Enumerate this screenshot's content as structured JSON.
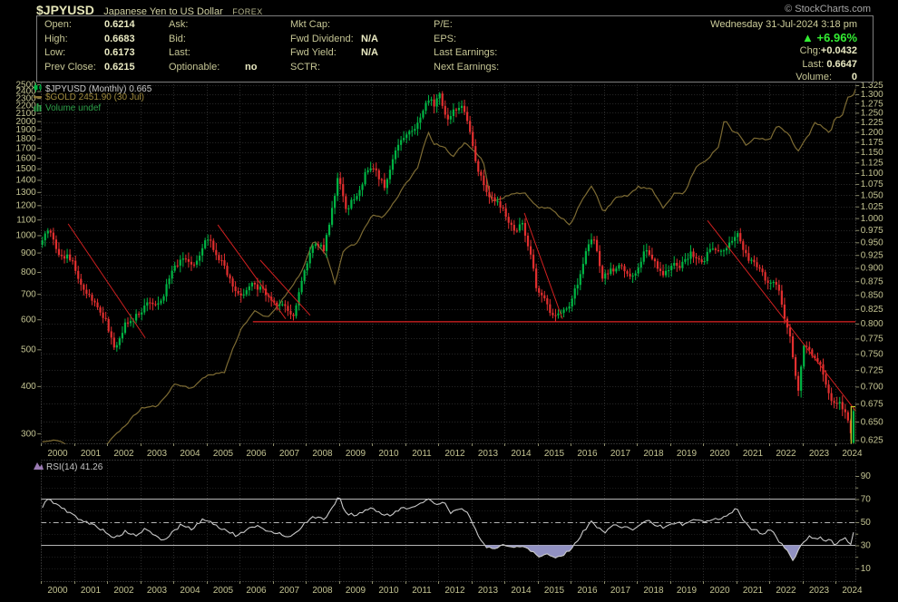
{
  "header": {
    "symbol": "$JPYUSD",
    "name": "Japanese Yen to US Dollar",
    "exchange": "FOREX",
    "copyright": "© StockCharts.com"
  },
  "quote_panel": {
    "date": "Wednesday 31-Jul-2024 3:18 pm",
    "up_arrow": "▲",
    "change_pct": "+6.96%",
    "chg_label": "Chg:",
    "chg_value": "+0.0432",
    "last_label": "Last:",
    "last_value": "0.6647",
    "volume_label": "Volume:",
    "volume_value": "0",
    "columns": [
      {
        "rows": [
          {
            "label": "Open:",
            "value": "0.6214"
          },
          {
            "label": "High:",
            "value": "0.6683"
          },
          {
            "label": "Low:",
            "value": "0.6173"
          },
          {
            "label": "Prev Close:",
            "value": "0.6215"
          }
        ]
      },
      {
        "rows": [
          {
            "label": "Ask:",
            "value": ""
          },
          {
            "label": "Bid:",
            "value": ""
          },
          {
            "label": "Last:",
            "value": ""
          },
          {
            "label": "Optionable:",
            "value": "no"
          }
        ]
      },
      {
        "rows": [
          {
            "label": "Mkt Cap:",
            "value": ""
          },
          {
            "label": "Fwd Dividend:",
            "value": "N/A"
          },
          {
            "label": "Fwd Yield:",
            "value": "N/A"
          },
          {
            "label": "SCTR:",
            "value": ""
          }
        ]
      },
      {
        "rows": [
          {
            "label": "P/E:",
            "value": ""
          },
          {
            "label": "EPS:",
            "value": ""
          },
          {
            "label": "Last Earnings:",
            "value": ""
          },
          {
            "label": "Next Earnings:",
            "value": ""
          }
        ]
      }
    ]
  },
  "legend": {
    "price": "$JPYUSD (Monthly) 0.665",
    "overlay": "$GOLD 2451.90 (30 Jul)",
    "volume": "Volume undef"
  },
  "rsi_legend": "RSI(14) 41.26",
  "chart_data": [
    {
      "type": "candlestick",
      "title": "$JPYUSD (Monthly)",
      "overlay_line": "$GOLD",
      "x_axis": {
        "start": 2000.0,
        "end": 2024.62,
        "tick_labels": [
          "2000",
          "2001",
          "2002",
          "2003",
          "2004",
          "2005",
          "2006",
          "2007",
          "2008",
          "2009",
          "2010",
          "2011",
          "2012",
          "2013",
          "2014",
          "2015",
          "2016",
          "2017",
          "2018",
          "2019",
          "2020",
          "2021",
          "2022",
          "2023",
          "2024"
        ]
      },
      "right_axis": {
        "scale": "log",
        "tick_min": 0.625,
        "tick_max": 1.325,
        "tick_step": 0.025,
        "decimals": 3
      },
      "left_axis": {
        "scale": "log",
        "tick_min": 300,
        "tick_max": 2500,
        "tick_step": 100
      },
      "jpyusd_close_anchors": [
        [
          2000.0,
          0.955
        ],
        [
          2000.17,
          0.975
        ],
        [
          2000.5,
          0.93
        ],
        [
          2000.9,
          0.915
        ],
        [
          2001.2,
          0.86
        ],
        [
          2001.7,
          0.825
        ],
        [
          2001.95,
          0.8
        ],
        [
          2002.2,
          0.755
        ],
        [
          2002.5,
          0.8
        ],
        [
          2002.9,
          0.815
        ],
        [
          2003.2,
          0.84
        ],
        [
          2003.6,
          0.835
        ],
        [
          2003.9,
          0.895
        ],
        [
          2004.2,
          0.92
        ],
        [
          2004.6,
          0.9
        ],
        [
          2004.95,
          0.965
        ],
        [
          2005.2,
          0.935
        ],
        [
          2005.6,
          0.89
        ],
        [
          2005.95,
          0.845
        ],
        [
          2006.3,
          0.875
        ],
        [
          2006.7,
          0.855
        ],
        [
          2007.0,
          0.84
        ],
        [
          2007.4,
          0.825
        ],
        [
          2007.55,
          0.805
        ],
        [
          2007.9,
          0.89
        ],
        [
          2008.2,
          0.95
        ],
        [
          2008.5,
          0.935
        ],
        [
          2008.75,
          1.02
        ],
        [
          2008.95,
          1.1
        ],
        [
          2009.15,
          1.015
        ],
        [
          2009.5,
          1.05
        ],
        [
          2009.85,
          1.115
        ],
        [
          2010.1,
          1.1
        ],
        [
          2010.35,
          1.065
        ],
        [
          2010.7,
          1.17
        ],
        [
          2010.95,
          1.195
        ],
        [
          2011.2,
          1.205
        ],
        [
          2011.45,
          1.24
        ],
        [
          2011.7,
          1.295
        ],
        [
          2011.85,
          1.27
        ],
        [
          2012.0,
          1.305
        ],
        [
          2012.2,
          1.23
        ],
        [
          2012.4,
          1.255
        ],
        [
          2012.7,
          1.275
        ],
        [
          2012.9,
          1.215
        ],
        [
          2013.1,
          1.12
        ],
        [
          2013.4,
          1.055
        ],
        [
          2013.7,
          1.035
        ],
        [
          2013.95,
          1.015
        ],
        [
          2014.2,
          0.975
        ],
        [
          2014.5,
          0.985
        ],
        [
          2014.75,
          0.93
        ],
        [
          2014.95,
          0.855
        ],
        [
          2015.2,
          0.84
        ],
        [
          2015.45,
          0.805
        ],
        [
          2015.7,
          0.825
        ],
        [
          2015.95,
          0.83
        ],
        [
          2016.2,
          0.88
        ],
        [
          2016.5,
          0.945
        ],
        [
          2016.65,
          0.965
        ],
        [
          2016.9,
          0.88
        ],
        [
          2017.1,
          0.89
        ],
        [
          2017.4,
          0.905
        ],
        [
          2017.7,
          0.89
        ],
        [
          2017.95,
          0.885
        ],
        [
          2018.2,
          0.94
        ],
        [
          2018.5,
          0.91
        ],
        [
          2018.8,
          0.885
        ],
        [
          2019.0,
          0.91
        ],
        [
          2019.3,
          0.905
        ],
        [
          2019.6,
          0.93
        ],
        [
          2019.95,
          0.915
        ],
        [
          2020.2,
          0.935
        ],
        [
          2020.5,
          0.93
        ],
        [
          2020.8,
          0.955
        ],
        [
          2021.0,
          0.97
        ],
        [
          2021.3,
          0.915
        ],
        [
          2021.6,
          0.905
        ],
        [
          2021.95,
          0.87
        ],
        [
          2022.2,
          0.87
        ],
        [
          2022.4,
          0.815
        ],
        [
          2022.6,
          0.77
        ],
        [
          2022.75,
          0.72
        ],
        [
          2022.82,
          0.69
        ],
        [
          2023.0,
          0.765
        ],
        [
          2023.2,
          0.75
        ],
        [
          2023.45,
          0.74
        ],
        [
          2023.7,
          0.7
        ],
        [
          2023.9,
          0.675
        ],
        [
          2024.05,
          0.68
        ],
        [
          2024.25,
          0.66
        ],
        [
          2024.42,
          0.637
        ],
        [
          2024.5,
          0.6215
        ],
        [
          2024.58,
          0.6647
        ]
      ],
      "gold_anchors": [
        [
          2000.0,
          285
        ],
        [
          2000.5,
          288
        ],
        [
          2001.2,
          262
        ],
        [
          2001.9,
          278
        ],
        [
          2002.5,
          315
        ],
        [
          2003.0,
          350
        ],
        [
          2003.5,
          355
        ],
        [
          2004.0,
          405
        ],
        [
          2004.5,
          395
        ],
        [
          2005.0,
          428
        ],
        [
          2005.5,
          435
        ],
        [
          2006.0,
          565
        ],
        [
          2006.4,
          630
        ],
        [
          2006.8,
          605
        ],
        [
          2007.2,
          665
        ],
        [
          2007.8,
          790
        ],
        [
          2008.2,
          965
        ],
        [
          2008.6,
          880
        ],
        [
          2008.85,
          735
        ],
        [
          2009.1,
          920
        ],
        [
          2009.5,
          950
        ],
        [
          2009.95,
          1130
        ],
        [
          2010.3,
          1115
        ],
        [
          2010.7,
          1250
        ],
        [
          2011.0,
          1375
        ],
        [
          2011.35,
          1510
        ],
        [
          2011.65,
          1880
        ],
        [
          2011.8,
          1745
        ],
        [
          2012.1,
          1720
        ],
        [
          2012.4,
          1600
        ],
        [
          2012.75,
          1760
        ],
        [
          2013.0,
          1680
        ],
        [
          2013.3,
          1590
        ],
        [
          2013.55,
          1230
        ],
        [
          2013.9,
          1250
        ],
        [
          2014.2,
          1290
        ],
        [
          2014.6,
          1290
        ],
        [
          2014.95,
          1185
        ],
        [
          2015.3,
          1180
        ],
        [
          2015.95,
          1065
        ],
        [
          2016.3,
          1235
        ],
        [
          2016.6,
          1350
        ],
        [
          2016.95,
          1150
        ],
        [
          2017.3,
          1250
        ],
        [
          2017.7,
          1275
        ],
        [
          2018.0,
          1340
        ],
        [
          2018.4,
          1320
        ],
        [
          2018.75,
          1185
        ],
        [
          2019.1,
          1290
        ],
        [
          2019.4,
          1290
        ],
        [
          2019.75,
          1520
        ],
        [
          2020.1,
          1590
        ],
        [
          2020.45,
          1720
        ],
        [
          2020.6,
          2030
        ],
        [
          2020.85,
          1880
        ],
        [
          2021.05,
          1845
        ],
        [
          2021.25,
          1730
        ],
        [
          2021.55,
          1815
        ],
        [
          2021.8,
          1790
        ],
        [
          2022.0,
          1800
        ],
        [
          2022.2,
          1950
        ],
        [
          2022.55,
          1840
        ],
        [
          2022.8,
          1660
        ],
        [
          2022.95,
          1740
        ],
        [
          2023.15,
          1840
        ],
        [
          2023.35,
          1985
        ],
        [
          2023.6,
          1920
        ],
        [
          2023.8,
          1850
        ],
        [
          2023.95,
          2045
        ],
        [
          2024.15,
          2060
        ],
        [
          2024.35,
          2330
        ],
        [
          2024.5,
          2340
        ],
        [
          2024.58,
          2451.9
        ]
      ],
      "last_candle": {
        "open": 0.6215,
        "high": 0.6683,
        "low": 0.6173,
        "close": 0.6647,
        "highlighted": true
      },
      "trendlines": [
        [
          2000.82,
          0.988,
          2003.15,
          0.776
        ],
        [
          2005.34,
          0.986,
          2007.39,
          0.808
        ],
        [
          2006.62,
          0.915,
          2008.13,
          0.814
        ],
        [
          2014.6,
          1.011,
          2015.75,
          0.808
        ],
        [
          2020.13,
          0.995,
          2024.79,
          0.654
        ]
      ],
      "support_line": {
        "value": 0.803,
        "from": 2006.4
      },
      "colors": {
        "up": "#00b544",
        "down": "#e22f2f",
        "gold": "#7d6b33",
        "trendline": "#d02020",
        "grid": "#2c2c2c",
        "frame": "#5a5a5a",
        "axis_text": "#c3c392",
        "highlight": "#c9c929"
      }
    },
    {
      "type": "line",
      "indicator": "RSI",
      "period": 14,
      "value": 41.26,
      "overbought": 70,
      "oversold": 30,
      "midline": 50,
      "y_ticks": [
        10,
        30,
        50,
        70,
        90
      ],
      "anchors": [
        [
          2000.0,
          62
        ],
        [
          2000.15,
          71
        ],
        [
          2000.4,
          66
        ],
        [
          2000.7,
          60
        ],
        [
          2001.0,
          55
        ],
        [
          2001.3,
          50
        ],
        [
          2001.6,
          47
        ],
        [
          2001.9,
          42
        ],
        [
          2002.2,
          36
        ],
        [
          2002.5,
          42
        ],
        [
          2002.8,
          38
        ],
        [
          2003.1,
          44
        ],
        [
          2003.4,
          38
        ],
        [
          2003.7,
          34
        ],
        [
          2003.95,
          42
        ],
        [
          2004.2,
          48
        ],
        [
          2004.5,
          44
        ],
        [
          2004.9,
          53
        ],
        [
          2005.2,
          48
        ],
        [
          2005.6,
          42
        ],
        [
          2005.9,
          38
        ],
        [
          2006.2,
          44
        ],
        [
          2006.5,
          46
        ],
        [
          2006.9,
          42
        ],
        [
          2007.2,
          40
        ],
        [
          2007.5,
          37
        ],
        [
          2007.9,
          48
        ],
        [
          2008.2,
          55
        ],
        [
          2008.5,
          52
        ],
        [
          2008.8,
          65
        ],
        [
          2008.95,
          73
        ],
        [
          2009.15,
          58
        ],
        [
          2009.5,
          56
        ],
        [
          2009.9,
          63
        ],
        [
          2010.2,
          58
        ],
        [
          2010.5,
          55
        ],
        [
          2010.8,
          62
        ],
        [
          2011.1,
          63
        ],
        [
          2011.4,
          65
        ],
        [
          2011.7,
          70
        ],
        [
          2011.9,
          66
        ],
        [
          2012.1,
          68
        ],
        [
          2012.35,
          58
        ],
        [
          2012.6,
          62
        ],
        [
          2012.9,
          56
        ],
        [
          2013.1,
          42
        ],
        [
          2013.35,
          30
        ],
        [
          2013.6,
          27
        ],
        [
          2013.9,
          30
        ],
        [
          2014.2,
          28
        ],
        [
          2014.5,
          30
        ],
        [
          2014.8,
          25
        ],
        [
          2015.0,
          20
        ],
        [
          2015.25,
          23
        ],
        [
          2015.5,
          19
        ],
        [
          2015.75,
          22
        ],
        [
          2016.0,
          28
        ],
        [
          2016.3,
          40
        ],
        [
          2016.6,
          52
        ],
        [
          2016.8,
          44
        ],
        [
          2017.0,
          42
        ],
        [
          2017.3,
          48
        ],
        [
          2017.6,
          45
        ],
        [
          2017.9,
          44
        ],
        [
          2018.2,
          52
        ],
        [
          2018.5,
          48
        ],
        [
          2018.8,
          45
        ],
        [
          2019.1,
          50
        ],
        [
          2019.4,
          48
        ],
        [
          2019.7,
          53
        ],
        [
          2019.95,
          50
        ],
        [
          2020.2,
          53
        ],
        [
          2020.5,
          52
        ],
        [
          2020.8,
          58
        ],
        [
          2020.95,
          64
        ],
        [
          2021.15,
          52
        ],
        [
          2021.4,
          45
        ],
        [
          2021.6,
          42
        ],
        [
          2021.8,
          40
        ],
        [
          2021.95,
          43
        ],
        [
          2022.1,
          40
        ],
        [
          2022.3,
          32
        ],
        [
          2022.45,
          27
        ],
        [
          2022.6,
          20
        ],
        [
          2022.7,
          17
        ],
        [
          2022.85,
          26
        ],
        [
          2023.0,
          33
        ],
        [
          2023.15,
          38
        ],
        [
          2023.3,
          35
        ],
        [
          2023.5,
          37
        ],
        [
          2023.65,
          33
        ],
        [
          2023.8,
          36
        ],
        [
          2023.95,
          30
        ],
        [
          2024.1,
          35
        ],
        [
          2024.25,
          37
        ],
        [
          2024.4,
          30
        ],
        [
          2024.5,
          31
        ],
        [
          2024.58,
          41.26
        ]
      ],
      "colors": {
        "line": "#c9c9c9",
        "fill": "#9191c2",
        "threshold": "#b5b5b5"
      }
    }
  ]
}
